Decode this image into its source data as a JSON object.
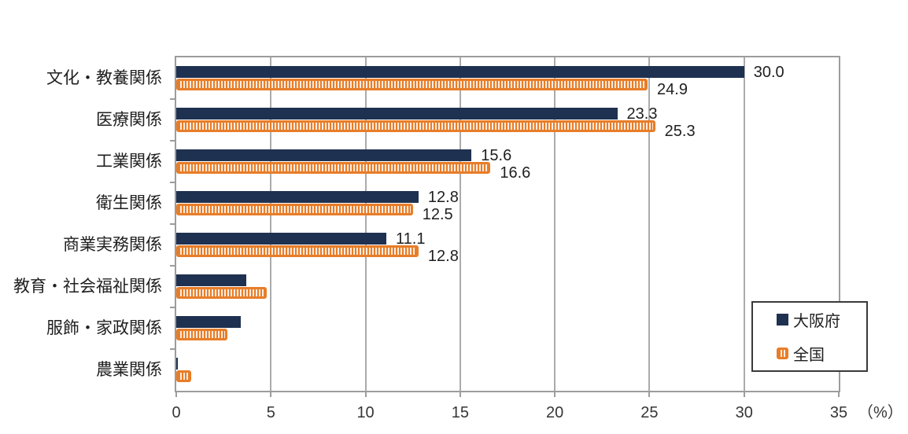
{
  "chart_data": {
    "type": "bar",
    "orientation": "horizontal",
    "title": "",
    "categories": [
      "文化・教養関係",
      "医療関係",
      "工業関係",
      "衛生関係",
      "商業実務関係",
      "教育・社会福祉関係",
      "服飾・家政関係",
      "農業関係"
    ],
    "series": [
      {
        "name": "大阪府",
        "style": "solid",
        "values": [
          30.0,
          23.3,
          15.6,
          12.8,
          11.1,
          3.7,
          3.4,
          0.1
        ],
        "labels": [
          "30.0",
          "23.3",
          "15.6",
          "12.8",
          "11.1",
          "",
          "",
          ""
        ]
      },
      {
        "name": "全国",
        "style": "vertical-stripes",
        "values": [
          24.9,
          25.3,
          16.6,
          12.5,
          12.8,
          4.8,
          2.7,
          0.8
        ],
        "labels": [
          "24.9",
          "25.3",
          "16.6",
          "12.5",
          "12.8",
          "",
          "",
          ""
        ]
      }
    ],
    "xlabel": "（%）",
    "x_ticks": [
      0,
      5,
      10,
      15,
      20,
      25,
      30,
      35
    ],
    "xlim": [
      0,
      35
    ],
    "grid": true,
    "legend_position": "inside-bottom-right"
  },
  "colors": {
    "osaka_navy": "#1f3150",
    "national_orange": "#e87d28",
    "stripe_light": "#f9ece1",
    "gridline": "#ababab",
    "plot_border": "#9c9c9c",
    "legend_border": "#3a3a3a",
    "text": "#1f1f1f"
  }
}
